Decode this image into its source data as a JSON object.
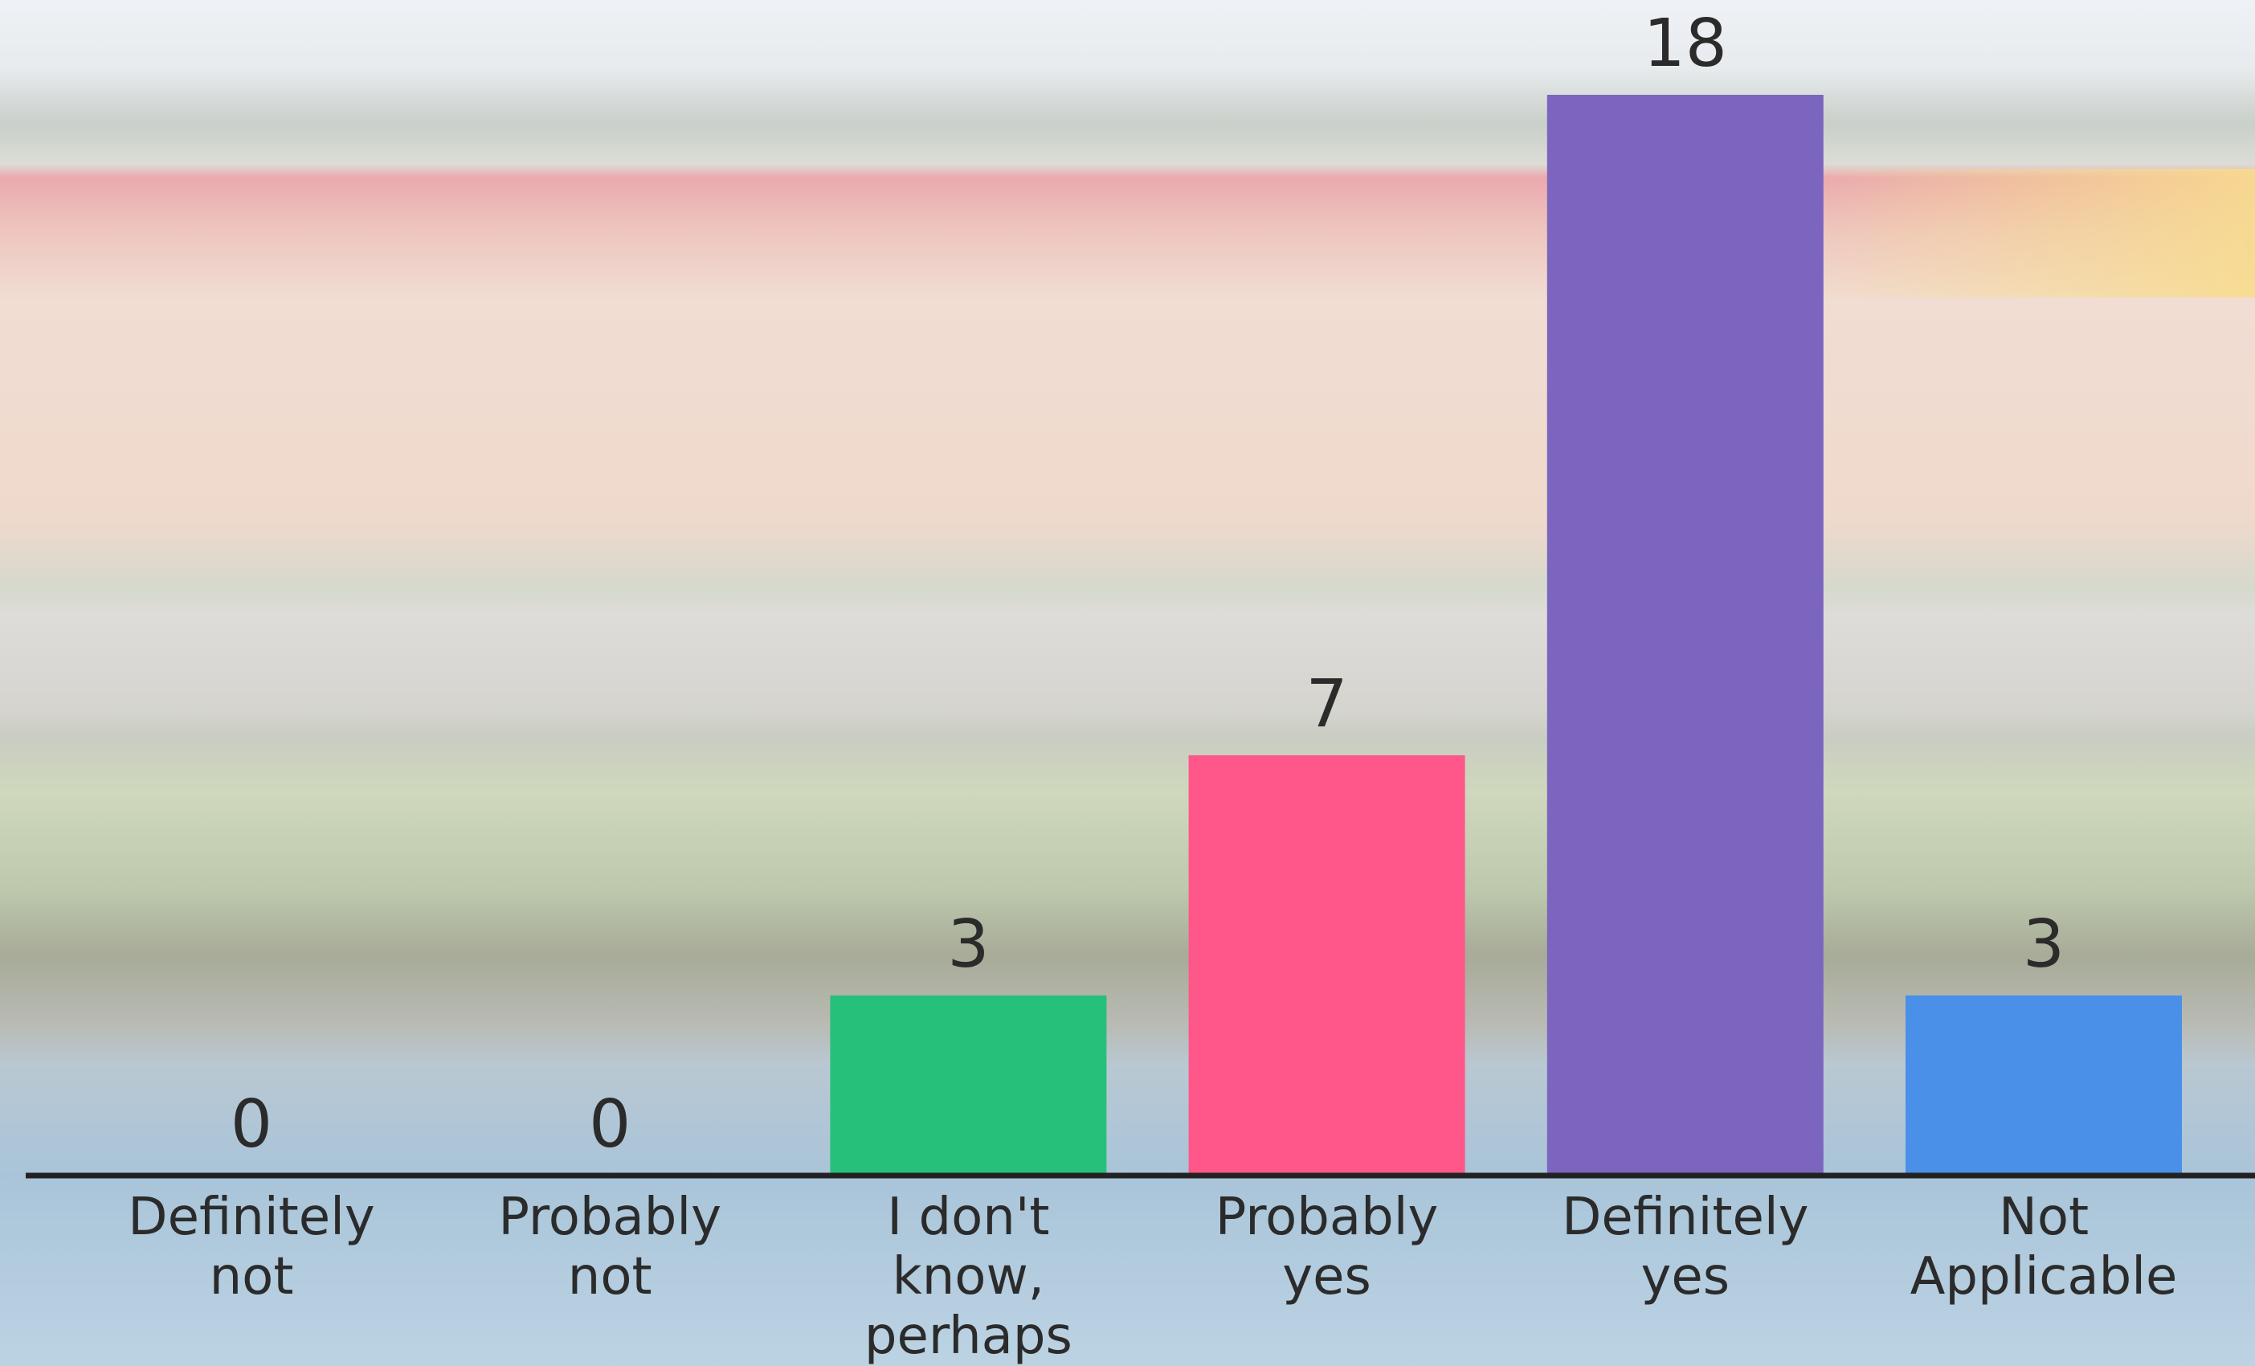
{
  "chart_data": {
    "type": "bar",
    "categories": [
      "Definitely not",
      "Probably not",
      "I don't know, perhaps",
      "Probably yes",
      "Definitely yes",
      "Not Applicable"
    ],
    "values": [
      0,
      0,
      3,
      7,
      18,
      3
    ],
    "colors": [
      null,
      null,
      "#27c07b",
      "#ff5789",
      "#7b65be",
      "#4a8fe8"
    ],
    "ylim": [
      0,
      18
    ]
  }
}
